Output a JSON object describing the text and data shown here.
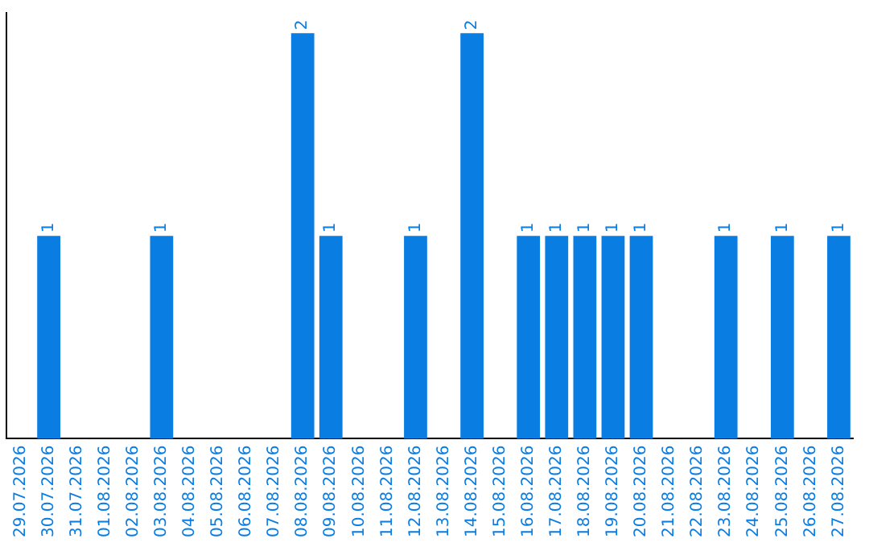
{
  "chart_data": {
    "type": "bar",
    "categories": [
      "29.07.2026",
      "30.07.2026",
      "31.07.2026",
      "01.08.2026",
      "02.08.2026",
      "03.08.2026",
      "04.08.2026",
      "05.08.2026",
      "06.08.2026",
      "07.08.2026",
      "08.08.2026",
      "09.08.2026",
      "10.08.2026",
      "11.08.2026",
      "12.08.2026",
      "13.08.2026",
      "14.08.2026",
      "15.08.2026",
      "16.08.2026",
      "17.08.2026",
      "18.08.2026",
      "19.08.2026",
      "20.08.2026",
      "21.08.2026",
      "22.08.2026",
      "23.08.2026",
      "24.08.2026",
      "25.08.2026",
      "26.08.2026",
      "27.08.2026"
    ],
    "values": [
      0,
      1,
      0,
      0,
      0,
      1,
      0,
      0,
      0,
      0,
      2,
      1,
      0,
      0,
      1,
      0,
      2,
      0,
      1,
      1,
      1,
      1,
      1,
      0,
      0,
      1,
      0,
      1,
      0,
      1
    ],
    "value_labels": [
      null,
      "1",
      null,
      null,
      null,
      "1",
      null,
      null,
      null,
      null,
      "2",
      "1",
      null,
      null,
      "1",
      null,
      "2",
      null,
      "1",
      "1",
      "1",
      "1",
      "1",
      null,
      null,
      "1",
      null,
      "1",
      null,
      "1"
    ],
    "color": "#0a7de3",
    "ylim": [
      0,
      2.1
    ],
    "tick_labels": "x",
    "grid": false,
    "legend": false
  }
}
